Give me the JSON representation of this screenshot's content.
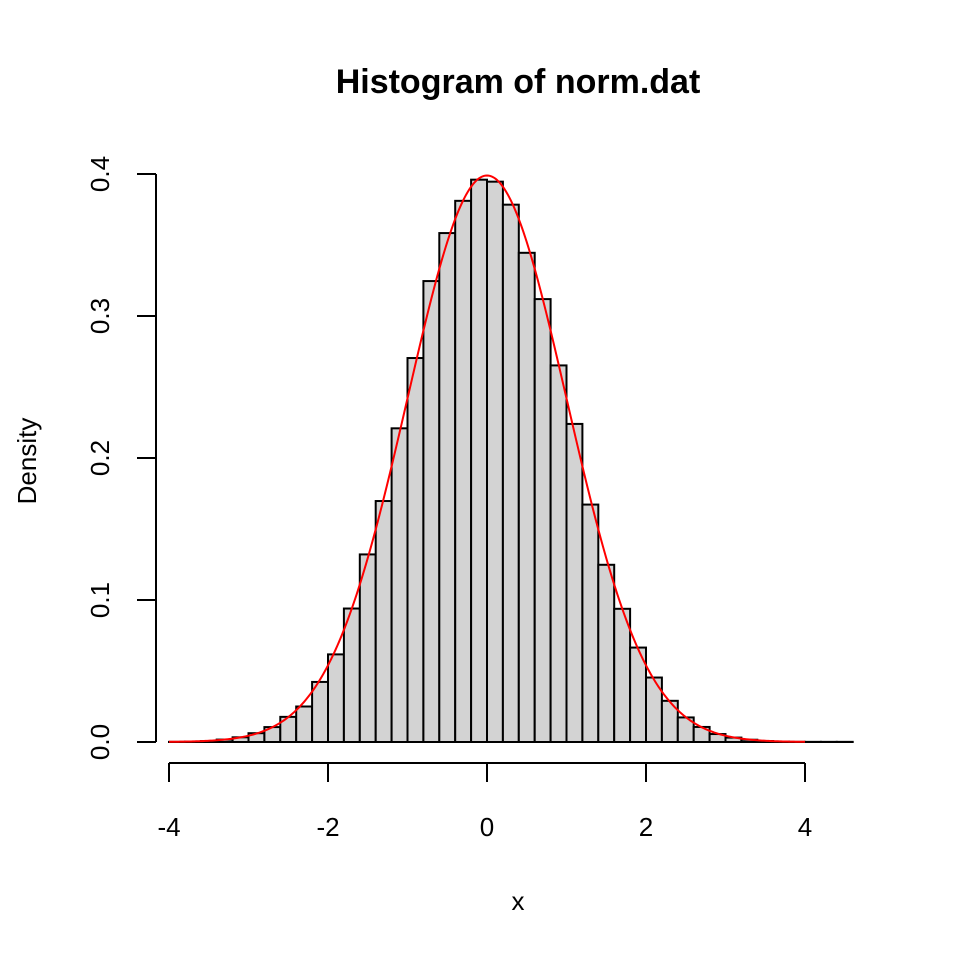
{
  "chart_data": {
    "type": "bar",
    "title": "Histogram of norm.dat",
    "xlabel": "x",
    "ylabel": "Density",
    "xlim": [
      -4,
      4.6
    ],
    "ylim": [
      0,
      0.4
    ],
    "x_ticks": [
      -4,
      -2,
      0,
      2,
      4
    ],
    "x_tick_labels": [
      "-4",
      "-2",
      "0",
      "2",
      "4"
    ],
    "y_ticks": [
      0,
      0.1,
      0.2,
      0.3,
      0.4
    ],
    "y_tick_labels": [
      "0.0",
      "0.1",
      "0.2",
      "0.3",
      "0.4"
    ],
    "bin_width": 0.2,
    "bin_starts": [
      -4.0,
      -3.8,
      -3.6,
      -3.4,
      -3.2,
      -3.0,
      -2.8,
      -2.6,
      -2.4,
      -2.2,
      -2.0,
      -1.8,
      -1.6,
      -1.4,
      -1.2,
      -1.0,
      -0.8,
      -0.6,
      -0.4,
      -0.2,
      0.0,
      0.2,
      0.4,
      0.6,
      0.8,
      1.0,
      1.2,
      1.4,
      1.6,
      1.8,
      2.0,
      2.2,
      2.4,
      2.6,
      2.8,
      3.0,
      3.2,
      3.4,
      3.6,
      3.8,
      4.0,
      4.2,
      4.4
    ],
    "densities": [
      0.0001,
      0.0003,
      0.0006,
      0.0017,
      0.0033,
      0.0062,
      0.0105,
      0.0177,
      0.025,
      0.0423,
      0.0617,
      0.094,
      0.1321,
      0.1697,
      0.2209,
      0.2704,
      0.3246,
      0.3584,
      0.3811,
      0.396,
      0.3946,
      0.3784,
      0.3445,
      0.3119,
      0.2652,
      0.224,
      0.1672,
      0.1248,
      0.0938,
      0.0665,
      0.0454,
      0.029,
      0.0173,
      0.0106,
      0.0056,
      0.0031,
      0.0016,
      0.0007,
      0.0003,
      0.0001,
      0.0001,
      0.0001,
      0.0001
    ],
    "overlay": {
      "type": "line",
      "function": "normal density",
      "mean": 0,
      "sd": 1,
      "x_range": [
        -4,
        4
      ],
      "color": "#ff0000"
    },
    "bar_fill": "#d3d3d3",
    "bar_stroke": "#000000",
    "grid": false
  }
}
